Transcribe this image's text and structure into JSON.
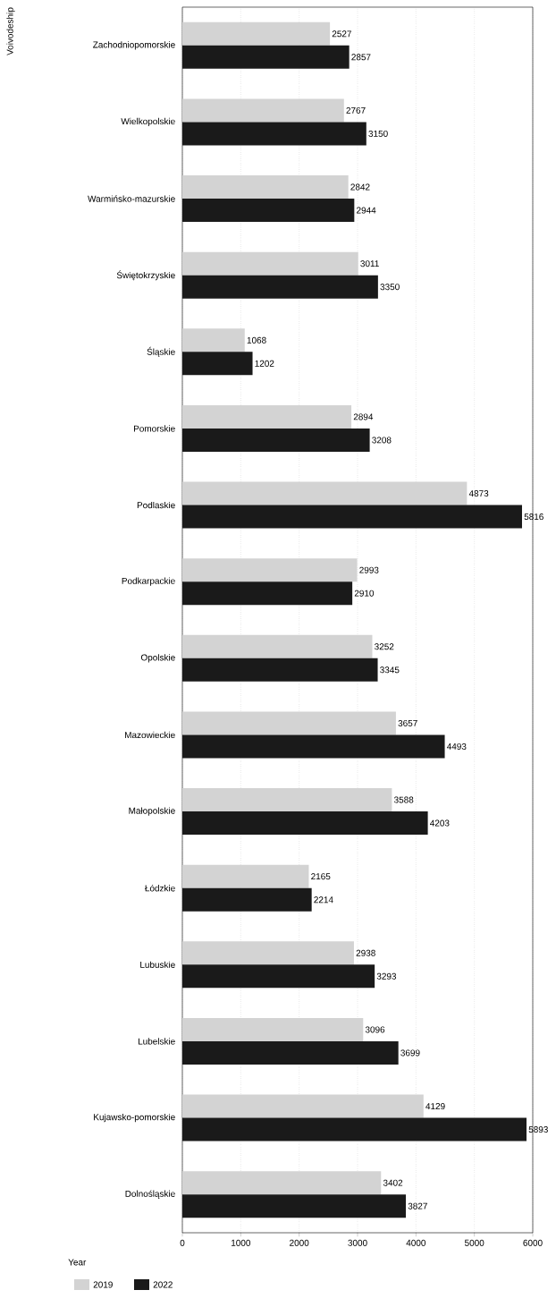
{
  "chart_data": {
    "type": "bar",
    "orientation": "horizontal",
    "annotations": [
      "Voivodeship"
    ],
    "legend_title": "Year",
    "legend": "bottom",
    "grid": "x",
    "data_labels": true,
    "categories": [
      "Zachodniopomorskie",
      "Wielkopolskie",
      "Warmińsko-mazurskie",
      "Świętokrzyskie",
      "Śląskie",
      "Pomorskie",
      "Podlaskie",
      "Podkarpackie",
      "Opolskie",
      "Mazowieckie",
      "Małopolskie",
      "Łódzkie",
      "Lubuskie",
      "Lubelskie",
      "Kujawsko-pomorskie",
      "Dolnośląskie"
    ],
    "series": [
      {
        "name": "2019",
        "color": "#d3d3d3",
        "values": [
          2527,
          2767,
          2842,
          3011,
          1068,
          2894,
          4873,
          2993,
          3252,
          3657,
          3588,
          2165,
          2938,
          3096,
          4129,
          3402
        ]
      },
      {
        "name": "2022",
        "color": "#1a1a1a",
        "values": [
          2857,
          3150,
          2944,
          3350,
          1202,
          3208,
          5816,
          2910,
          3345,
          4493,
          4203,
          2214,
          3293,
          3699,
          5893,
          3827
        ]
      }
    ],
    "xlim": [
      0,
      6000
    ],
    "xticks": [
      0,
      1000,
      2000,
      3000,
      4000,
      5000,
      6000
    ]
  }
}
